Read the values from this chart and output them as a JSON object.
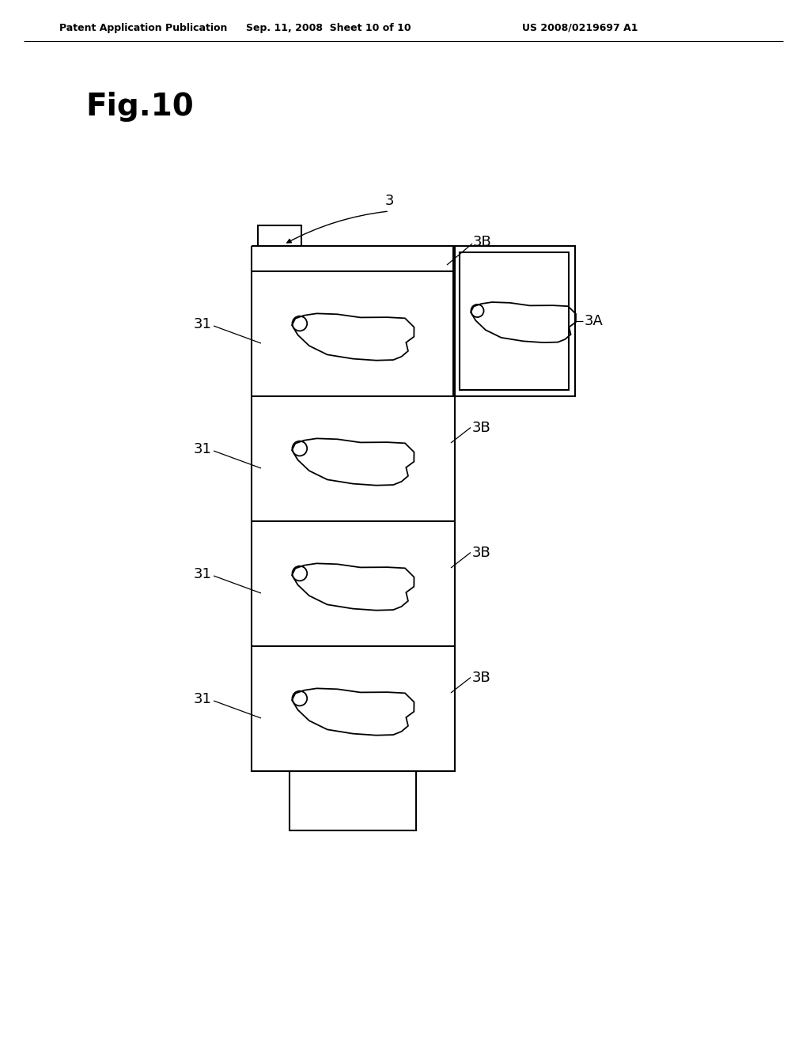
{
  "background_color": "#ffffff",
  "header_left": "Patent Application Publication",
  "header_center": "Sep. 11, 2008  Sheet 10 of 10",
  "header_right": "US 2008/0219697 A1",
  "fig_label": "Fig.10",
  "line_color": "#000000",
  "line_width": 1.5
}
